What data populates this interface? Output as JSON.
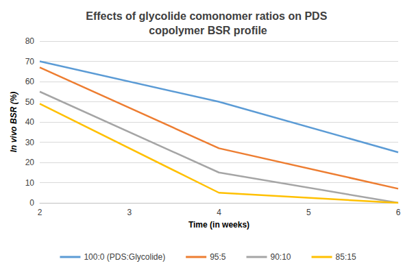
{
  "chart_data": {
    "type": "line",
    "title": "Effects of glycolide comonomer ratios on PDS copolymer BSR profile",
    "x_label": "Time (in weeks)",
    "y_label": "In vivo BSR (%)",
    "x": [
      2,
      4,
      6
    ],
    "series": [
      {
        "name": "100:0 (PDS:Glycolide)",
        "color": "#5b9bd5",
        "values": [
          70,
          50,
          25
        ]
      },
      {
        "name": "95:5",
        "color": "#ed7d31",
        "values": [
          67,
          27,
          7
        ]
      },
      {
        "name": "90:10",
        "color": "#a5a5a5",
        "values": [
          55,
          15,
          0
        ]
      },
      {
        "name": "85:15",
        "color": "#ffc000",
        "values": [
          49,
          5,
          0
        ]
      }
    ],
    "xlim": [
      2,
      6
    ],
    "xticks": [
      2,
      3,
      4,
      5,
      6
    ],
    "ylim": [
      0,
      80
    ],
    "yticks": [
      0,
      10,
      20,
      30,
      40,
      50,
      60,
      70,
      80
    ],
    "grid": true,
    "legend": "bottom"
  }
}
